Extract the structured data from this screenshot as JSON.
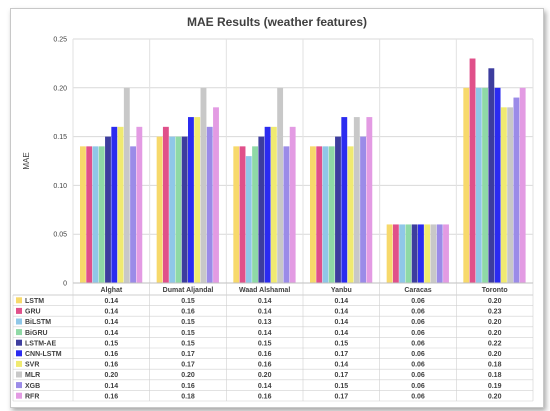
{
  "chart_data": {
    "type": "bar",
    "title": "MAE Results (weather features)",
    "ylabel": "MAE",
    "xlabel": "",
    "ylim": [
      0,
      0.25
    ],
    "yticks": [
      "0",
      "0.05",
      "0.10",
      "0.15",
      "0.20",
      "0.25"
    ],
    "grid": true,
    "legend": "data-table-below",
    "categories": [
      "Alghat",
      "Dumat Aljandal",
      "Waad Alshamal",
      "Yanbu",
      "Caracas",
      "Toronto"
    ],
    "series": [
      {
        "name": "LSTM",
        "color": "#f7d96b",
        "values": [
          0.14,
          0.15,
          0.14,
          0.14,
          0.06,
          0.2
        ]
      },
      {
        "name": "GRU",
        "color": "#e0508a",
        "values": [
          0.14,
          0.16,
          0.14,
          0.14,
          0.06,
          0.23
        ]
      },
      {
        "name": "BiLSTM",
        "color": "#8fc7e8",
        "values": [
          0.14,
          0.15,
          0.13,
          0.14,
          0.06,
          0.2
        ]
      },
      {
        "name": "BiGRU",
        "color": "#8fd9a6",
        "values": [
          0.14,
          0.15,
          0.14,
          0.14,
          0.06,
          0.2
        ]
      },
      {
        "name": "LSTM-AE",
        "color": "#3d3d9e",
        "values": [
          0.15,
          0.15,
          0.15,
          0.15,
          0.06,
          0.22
        ]
      },
      {
        "name": "CNN-LSTM",
        "color": "#2b2bf0",
        "values": [
          0.16,
          0.17,
          0.16,
          0.17,
          0.06,
          0.2
        ]
      },
      {
        "name": "SVR",
        "color": "#f0ea70",
        "values": [
          0.16,
          0.17,
          0.16,
          0.14,
          0.06,
          0.18
        ]
      },
      {
        "name": "MLR",
        "color": "#c8c8c8",
        "values": [
          0.2,
          0.2,
          0.2,
          0.17,
          0.06,
          0.18
        ]
      },
      {
        "name": "XGB",
        "color": "#9b8be8",
        "values": [
          0.14,
          0.16,
          0.14,
          0.15,
          0.06,
          0.19
        ]
      },
      {
        "name": "RFR",
        "color": "#e39be3",
        "values": [
          0.16,
          0.18,
          0.16,
          0.17,
          0.06,
          0.2
        ]
      }
    ],
    "table": {
      "LSTM": [
        "0.14",
        "0.15",
        "0.14",
        "0.14",
        "0.06",
        "0.20"
      ],
      "GRU": [
        "0.14",
        "0.16",
        "0.14",
        "0.14",
        "0.06",
        "0.23"
      ],
      "BiLSTM": [
        "0.14",
        "0.15",
        "0.13",
        "0.14",
        "0.06",
        "0.20"
      ],
      "BiGRU": [
        "0.14",
        "0.15",
        "0.14",
        "0.14",
        "0.06",
        "0.20"
      ],
      "LSTM-AE": [
        "0.15",
        "0.15",
        "0.15",
        "0.15",
        "0.06",
        "0.22"
      ],
      "CNN-LSTM": [
        "0.16",
        "0.17",
        "0.16",
        "0.17",
        "0.06",
        "0.20"
      ],
      "SVR": [
        "0.16",
        "0.17",
        "0.16",
        "0.14",
        "0.06",
        "0.18"
      ],
      "MLR": [
        "0.20",
        "0.20",
        "0.20",
        "0.17",
        "0.06",
        "0.18"
      ],
      "XGB": [
        "0.14",
        "0.16",
        "0.14",
        "0.15",
        "0.06",
        "0.19"
      ],
      "RFR": [
        "0.16",
        "0.18",
        "0.16",
        "0.17",
        "0.06",
        "0.20"
      ]
    }
  }
}
